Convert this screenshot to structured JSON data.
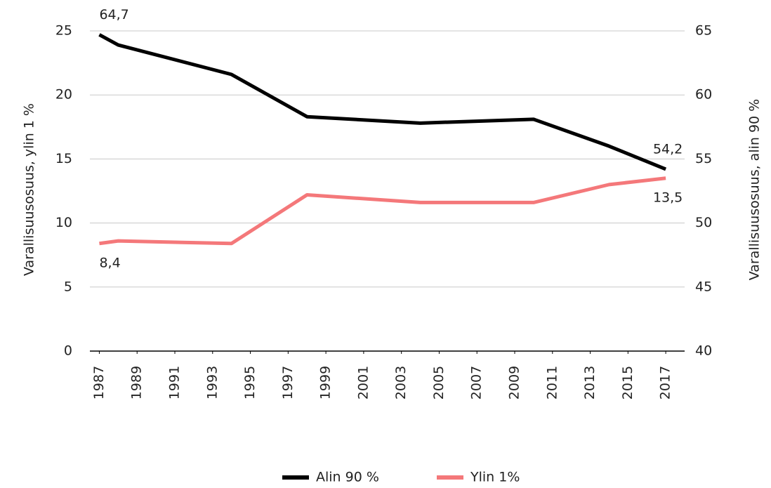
{
  "chart_data": {
    "type": "line",
    "x": [
      1987,
      1988,
      1994,
      1998,
      2004,
      2010,
      2014,
      2017
    ],
    "series": [
      {
        "name": "Alin 90 %",
        "color": "#000000",
        "axis": "y2",
        "values": [
          64.7,
          63.9,
          61.6,
          58.3,
          57.8,
          58.1,
          56.0,
          54.2
        ],
        "value_labels": [
          "64,7",
          null,
          null,
          null,
          null,
          null,
          null,
          "54,2"
        ]
      },
      {
        "name": "Ylin 1%",
        "color": "#f4787a",
        "axis": "y",
        "values": [
          8.4,
          8.6,
          8.4,
          12.2,
          11.6,
          11.6,
          13.0,
          13.5
        ],
        "value_labels": [
          "8,4",
          null,
          null,
          null,
          null,
          null,
          null,
          "13,5"
        ]
      }
    ],
    "xlim": [
      1986.5,
      2018
    ],
    "xticks": [
      1987,
      1989,
      1991,
      1993,
      1995,
      1997,
      1999,
      2001,
      2003,
      2005,
      2007,
      2009,
      2011,
      2013,
      2015,
      2017
    ],
    "ylim": [
      0,
      25
    ],
    "yticks": [
      0,
      5,
      10,
      15,
      20,
      25
    ],
    "y2lim": [
      40,
      65
    ],
    "y2ticks": [
      40,
      45,
      50,
      55,
      60,
      65
    ],
    "ylabel": "Varallisuusosuus, ylin 1 %",
    "y2label": "Varallisuusosuus, alin 90 %",
    "grid": true,
    "legend": "bottom"
  }
}
